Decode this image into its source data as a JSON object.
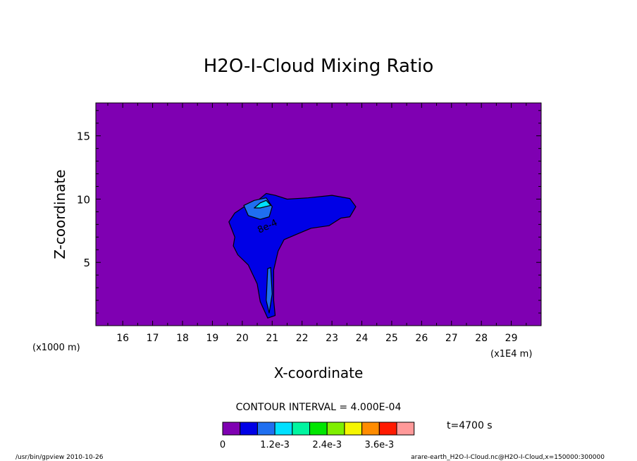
{
  "chart_data": {
    "type": "heatmap",
    "title": "H2O-I-Cloud Mixing Ratio",
    "xlabel": "X-coordinate",
    "ylabel": "Z-coordinate",
    "x_unit_left": "(x1000 m)",
    "x_unit_right": "(x1E4 m)",
    "xlim": [
      15.1,
      30.0
    ],
    "ylim": [
      0.0,
      17.6
    ],
    "x_ticks": [
      "16",
      "17",
      "18",
      "19",
      "20",
      "21",
      "22",
      "23",
      "24",
      "25",
      "26",
      "27",
      "28",
      "29"
    ],
    "y_ticks": [
      "5",
      "10",
      "15"
    ],
    "contour_interval_text": "CONTOUR INTERVAL = 4.000E-04",
    "contour_label": "8e-4",
    "time_text": "t=4700 s",
    "colorbar": {
      "colors": [
        "#7f00b2",
        "#0000e6",
        "#1f6ff0",
        "#00e0ff",
        "#00f5a0",
        "#00e600",
        "#7fef00",
        "#f5f500",
        "#ff8c00",
        "#ff1a00",
        "#ff9999"
      ],
      "tick_labels": [
        "0",
        "1.2e-3",
        "2.4e-3",
        "3.6e-3"
      ],
      "tick_positions": [
        0,
        3,
        6,
        9
      ]
    },
    "regions": [
      {
        "level": 1,
        "color": "#0000e6",
        "outline": [
          [
            19.55,
            8.2
          ],
          [
            19.75,
            8.9
          ],
          [
            20.1,
            9.45
          ],
          [
            20.5,
            9.85
          ],
          [
            20.8,
            10.45
          ],
          [
            21.1,
            10.3
          ],
          [
            21.5,
            10.0
          ],
          [
            22.2,
            10.1
          ],
          [
            23.0,
            10.3
          ],
          [
            23.6,
            10.05
          ],
          [
            23.8,
            9.4
          ],
          [
            23.6,
            8.6
          ],
          [
            23.3,
            8.5
          ],
          [
            22.9,
            7.9
          ],
          [
            22.3,
            7.7
          ],
          [
            21.8,
            7.2
          ],
          [
            21.4,
            6.8
          ],
          [
            21.2,
            5.9
          ],
          [
            21.05,
            4.4
          ],
          [
            21.05,
            2.0
          ],
          [
            21.1,
            0.8
          ],
          [
            20.85,
            0.6
          ],
          [
            20.6,
            1.9
          ],
          [
            20.5,
            3.3
          ],
          [
            20.2,
            4.8
          ],
          [
            19.85,
            5.6
          ],
          [
            19.7,
            6.3
          ],
          [
            19.75,
            7.0
          ],
          [
            19.55,
            8.2
          ]
        ]
      },
      {
        "level": 2,
        "color": "#1f6ff0",
        "outline": [
          [
            20.05,
            9.5
          ],
          [
            20.4,
            9.9
          ],
          [
            20.8,
            10.1
          ],
          [
            21.0,
            9.4
          ],
          [
            20.9,
            8.6
          ],
          [
            20.6,
            8.4
          ],
          [
            20.2,
            8.7
          ],
          [
            20.05,
            9.5
          ]
        ]
      },
      {
        "level": 2,
        "color": "#1f6ff0",
        "outline": [
          [
            20.8,
            2.0
          ],
          [
            20.85,
            4.5
          ],
          [
            20.95,
            4.6
          ],
          [
            21.0,
            2.5
          ],
          [
            20.9,
            1.0
          ],
          [
            20.8,
            2.0
          ]
        ]
      },
      {
        "level": 3,
        "color": "#00e0ff",
        "outline": [
          [
            20.4,
            9.3
          ],
          [
            20.6,
            9.7
          ],
          [
            20.8,
            9.9
          ],
          [
            20.95,
            9.5
          ],
          [
            20.6,
            9.3
          ],
          [
            20.4,
            9.3
          ]
        ]
      }
    ],
    "footer_left": "/usr/bin/gpview   2010-10-26",
    "footer_right": "arare-earth_H2O-I-Cloud.nc@H2O-I-Cloud,x=150000:300000"
  }
}
